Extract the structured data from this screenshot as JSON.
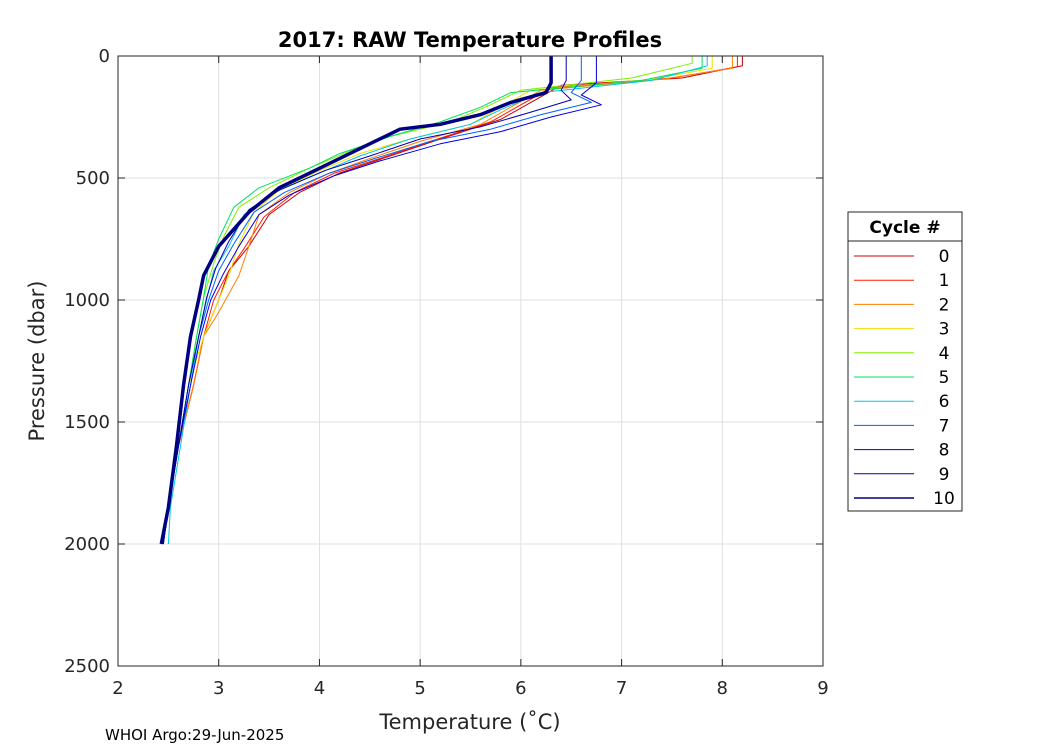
{
  "chart_data": {
    "type": "line",
    "title": "2017: RAW Temperature Profiles",
    "xlabel": "Temperature (˚C)",
    "ylabel": "Pressure (dbar)",
    "xlim": [
      2,
      9
    ],
    "ylim": [
      0,
      2500
    ],
    "y_reversed": true,
    "x_ticks": [
      "2",
      "3",
      "4",
      "5",
      "6",
      "7",
      "8",
      "9"
    ],
    "y_ticks": [
      "0",
      "500",
      "1000",
      "1500",
      "2000",
      "2500"
    ],
    "grid": true,
    "legend": {
      "title": "Cycle #",
      "position": "right"
    },
    "series": [
      {
        "name": "0",
        "color": "#c80000",
        "x": [
          8.2,
          8.2,
          7.6,
          6.4,
          6.1,
          5.8,
          5.2,
          4.7,
          4.2,
          3.8,
          3.5,
          3.3,
          3.1,
          3.0,
          2.85,
          2.75,
          2.6,
          2.5,
          2.45
        ],
        "y": [
          0,
          40,
          90,
          120,
          190,
          260,
          340,
          410,
          480,
          560,
          650,
          780,
          880,
          1000,
          1150,
          1350,
          1600,
          1850,
          2000
        ]
      },
      {
        "name": "1",
        "color": "#ff1a00",
        "x": [
          8.15,
          8.15,
          7.5,
          6.3,
          6.0,
          5.7,
          5.1,
          4.6,
          4.15,
          3.75,
          3.45,
          3.25,
          3.1,
          2.95,
          2.85,
          2.75,
          2.6,
          2.5,
          2.45
        ],
        "y": [
          0,
          45,
          90,
          130,
          200,
          270,
          350,
          420,
          480,
          560,
          660,
          790,
          880,
          1000,
          1150,
          1350,
          1600,
          1850,
          2000
        ]
      },
      {
        "name": "2",
        "color": "#ff8000",
        "x": [
          8.1,
          8.1,
          7.4,
          6.2,
          5.9,
          5.6,
          5.0,
          4.5,
          4.1,
          3.7,
          3.4,
          3.3,
          3.2,
          3.0,
          2.85,
          2.75,
          2.6,
          2.5,
          2.45
        ],
        "y": [
          0,
          50,
          95,
          140,
          210,
          280,
          350,
          420,
          480,
          560,
          650,
          780,
          900,
          1050,
          1150,
          1350,
          1600,
          1850,
          2000
        ]
      },
      {
        "name": "3",
        "color": "#f0e000",
        "x": [
          7.9,
          7.9,
          7.3,
          6.1,
          5.8,
          5.5,
          4.9,
          4.4,
          4.0,
          3.6,
          3.35,
          3.2,
          3.1,
          3.0,
          2.85,
          2.7,
          2.6,
          2.5,
          2.45
        ],
        "y": [
          0,
          50,
          95,
          140,
          210,
          280,
          340,
          400,
          470,
          550,
          640,
          770,
          900,
          1000,
          1150,
          1350,
          1600,
          1850,
          2000
        ]
      },
      {
        "name": "4",
        "color": "#80f000",
        "x": [
          7.7,
          7.7,
          7.1,
          6.0,
          5.7,
          5.3,
          4.7,
          4.3,
          3.9,
          3.5,
          3.2,
          3.05,
          2.95,
          2.85,
          2.78,
          2.7,
          2.6,
          2.5,
          2.45
        ],
        "y": [
          0,
          30,
          90,
          140,
          200,
          270,
          330,
          390,
          460,
          540,
          620,
          740,
          850,
          990,
          1150,
          1350,
          1600,
          1850,
          2000
        ]
      },
      {
        "name": "5",
        "color": "#00e060",
        "x": [
          7.8,
          7.8,
          7.2,
          5.9,
          5.6,
          5.2,
          4.7,
          4.2,
          3.9,
          3.4,
          3.15,
          3.0,
          2.9,
          2.85,
          2.78,
          2.7,
          2.6,
          2.5,
          2.45
        ],
        "y": [
          0,
          50,
          100,
          150,
          210,
          270,
          330,
          400,
          460,
          540,
          620,
          750,
          860,
          990,
          1150,
          1350,
          1600,
          1850,
          2000
        ]
      },
      {
        "name": "6",
        "color": "#00c8e8",
        "x": [
          7.85,
          7.85,
          7.3,
          6.2,
          5.8,
          5.5,
          4.9,
          4.4,
          4.0,
          3.55,
          3.25,
          3.1,
          2.95,
          2.88,
          2.8,
          2.72,
          2.62,
          2.52,
          2.5
        ],
        "y": [
          0,
          40,
          100,
          150,
          220,
          280,
          340,
          410,
          480,
          560,
          650,
          780,
          880,
          1000,
          1150,
          1350,
          1600,
          1850,
          2000
        ]
      },
      {
        "name": "7",
        "color": "#0060ff",
        "x": [
          6.6,
          6.6,
          6.5,
          6.7,
          6.2,
          5.7,
          5.1,
          4.55,
          4.1,
          3.65,
          3.35,
          3.15,
          3.0,
          2.9,
          2.8,
          2.7,
          2.6,
          2.5,
          2.45
        ],
        "y": [
          0,
          100,
          150,
          190,
          240,
          300,
          350,
          420,
          480,
          560,
          640,
          770,
          880,
          1000,
          1150,
          1350,
          1600,
          1850,
          2000
        ]
      },
      {
        "name": "8",
        "color": "#0000e0",
        "x": [
          6.75,
          6.75,
          6.6,
          6.8,
          6.3,
          5.8,
          5.2,
          4.6,
          4.15,
          3.7,
          3.4,
          3.2,
          3.05,
          2.92,
          2.82,
          2.72,
          2.6,
          2.5,
          2.45
        ],
        "y": [
          0,
          110,
          160,
          200,
          250,
          310,
          360,
          430,
          490,
          570,
          650,
          780,
          890,
          1000,
          1150,
          1350,
          1600,
          1850,
          2000
        ]
      },
      {
        "name": "9",
        "color": "#0000b0",
        "x": [
          6.45,
          6.45,
          6.4,
          6.5,
          6.1,
          5.6,
          5.0,
          4.5,
          4.05,
          3.6,
          3.3,
          3.1,
          2.97,
          2.88,
          2.8,
          2.7,
          2.6,
          2.5,
          2.45
        ],
        "y": [
          0,
          100,
          140,
          180,
          230,
          290,
          340,
          410,
          470,
          550,
          630,
          760,
          870,
          990,
          1150,
          1350,
          1600,
          1850,
          2000
        ]
      },
      {
        "name": "10",
        "color": "#000080",
        "x": [
          6.3,
          6.3,
          6.25,
          5.9,
          5.6,
          5.2,
          4.8,
          4.5,
          4.1,
          3.6,
          3.3,
          3.0,
          2.85,
          2.8,
          2.72,
          2.65,
          2.58,
          2.5,
          2.43
        ],
        "y": [
          0,
          110,
          150,
          190,
          240,
          280,
          300,
          360,
          440,
          540,
          640,
          780,
          900,
          1000,
          1150,
          1350,
          1600,
          1850,
          2000
        ]
      }
    ]
  },
  "footer": {
    "text": "WHOI Argo:29-Jun-2025"
  }
}
